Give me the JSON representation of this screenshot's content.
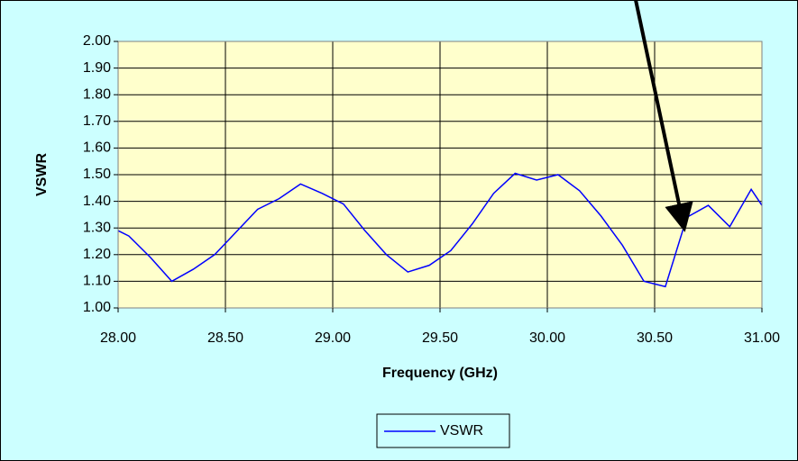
{
  "chart_data": {
    "type": "line",
    "y_label": "VSWR",
    "x_label": "Frequency (GHz)",
    "x": [
      28.0,
      28.05,
      28.15,
      28.25,
      28.35,
      28.45,
      28.55,
      28.65,
      28.75,
      28.85,
      28.95,
      29.05,
      29.15,
      29.25,
      29.35,
      29.45,
      29.55,
      29.65,
      29.75,
      29.85,
      29.95,
      30.05,
      30.15,
      30.25,
      30.35,
      30.45,
      30.55,
      30.65,
      30.75,
      30.85,
      30.95,
      31.0
    ],
    "series": [
      {
        "name": "VSWR",
        "color": "#0000ff",
        "values": [
          1.29,
          1.27,
          1.19,
          1.1,
          1.145,
          1.2,
          1.285,
          1.37,
          1.41,
          1.465,
          1.43,
          1.39,
          1.29,
          1.2,
          1.135,
          1.16,
          1.215,
          1.315,
          1.43,
          1.505,
          1.48,
          1.5,
          1.44,
          1.345,
          1.235,
          1.1,
          1.08,
          1.34,
          1.385,
          1.305,
          1.445,
          1.385
        ]
      }
    ],
    "xlim": [
      28,
      31
    ],
    "xticks": [
      {
        "value": 28,
        "label": "28.00"
      },
      {
        "value": 28.5,
        "label": "28.50"
      },
      {
        "value": 29,
        "label": "29.00"
      },
      {
        "value": 29.5,
        "label": "29.50"
      },
      {
        "value": 30,
        "label": "30.00"
      },
      {
        "value": 30.5,
        "label": "30.50"
      },
      {
        "value": 31,
        "label": "31.00"
      }
    ],
    "ylim": [
      1,
      2
    ],
    "yticks": [
      {
        "value": 1,
        "label": "1.00"
      },
      {
        "value": 1.1,
        "label": "1.10"
      },
      {
        "value": 1.2,
        "label": "1.20"
      },
      {
        "value": 1.3,
        "label": "1.30"
      },
      {
        "value": 1.4,
        "label": "1.40"
      },
      {
        "value": 1.5,
        "label": "1.50"
      },
      {
        "value": 1.6,
        "label": "1.60"
      },
      {
        "value": 1.7,
        "label": "1.70"
      },
      {
        "value": 1.8,
        "label": "1.80"
      },
      {
        "value": 1.9,
        "label": "1.90"
      },
      {
        "value": 2,
        "label": "2.00"
      }
    ],
    "grid": true,
    "legend": "bottom"
  }
}
